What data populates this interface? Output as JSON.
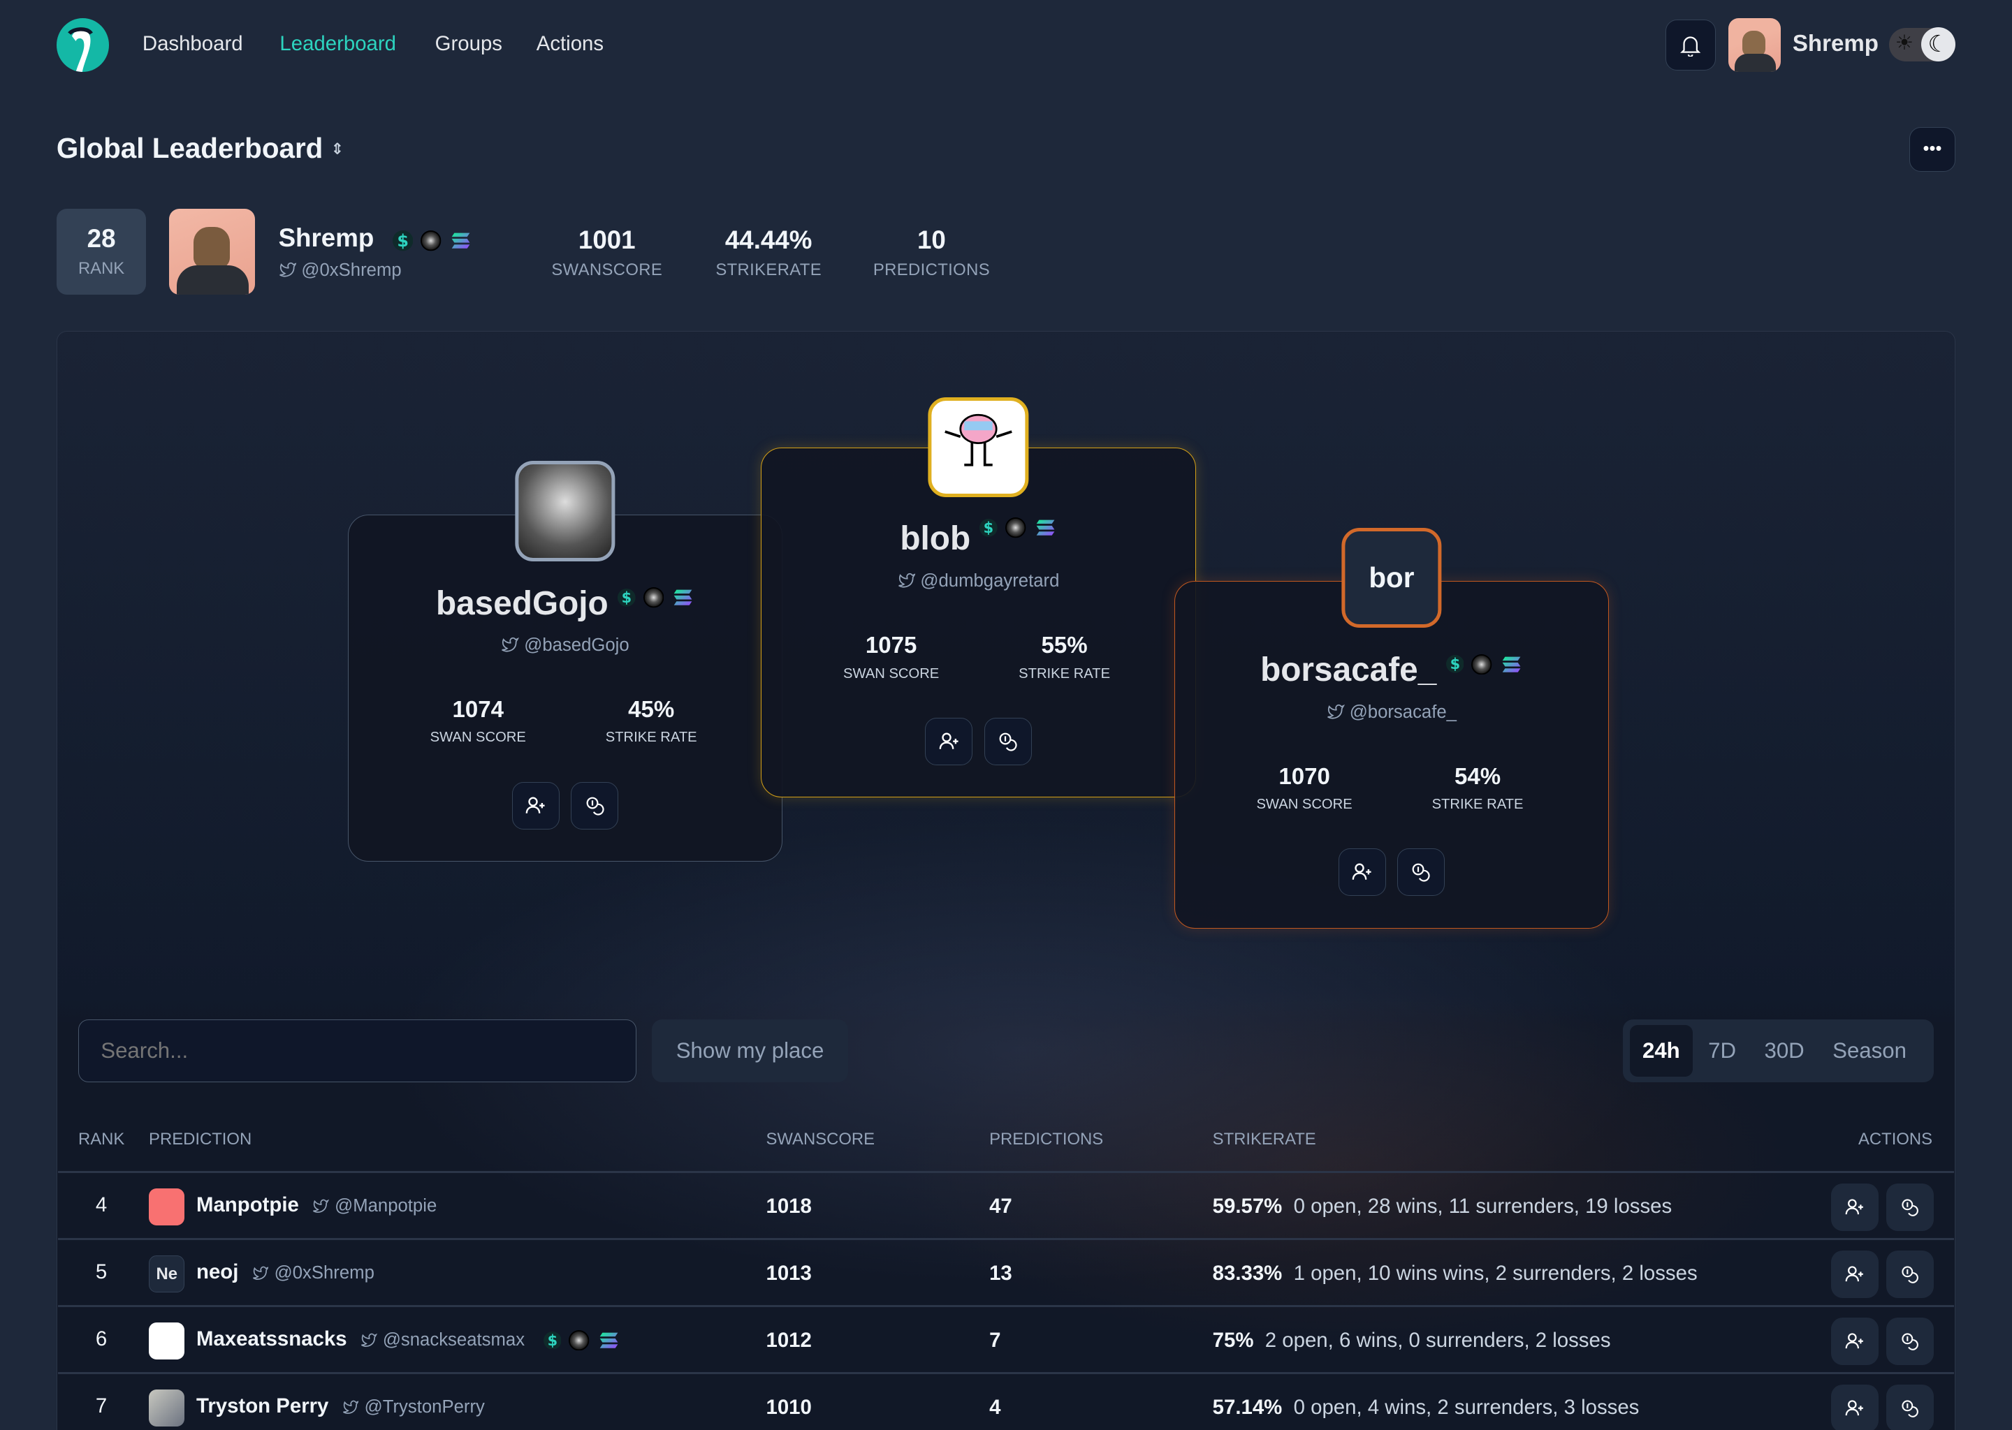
{
  "nav": {
    "items": [
      {
        "label": "Dashboard",
        "active": false
      },
      {
        "label": "Leaderboard",
        "active": true
      },
      {
        "label": "Groups",
        "active": false
      },
      {
        "label": "Actions",
        "active": false
      }
    ],
    "user_name": "Shremp",
    "accent": "#2dd4bf"
  },
  "page": {
    "title": "Global Leaderboard"
  },
  "me": {
    "rank": "28",
    "rank_label": "RANK",
    "name": "Shremp",
    "handle": "@0xShremp",
    "stats": [
      {
        "value": "1001",
        "label": "SWANSCORE"
      },
      {
        "value": "44.44%",
        "label": "STRIKERATE"
      },
      {
        "value": "10",
        "label": "PREDICTIONS"
      }
    ]
  },
  "podium": [
    {
      "place": 2,
      "name": "basedGojo",
      "handle": "@basedGojo",
      "swan_score": "1074",
      "strike_rate": "45%",
      "swan_label": "SWAN SCORE",
      "strike_label": "STRIKE RATE",
      "border": "#475569"
    },
    {
      "place": 1,
      "name": "blob",
      "handle": "@dumbgayretard",
      "swan_score": "1075",
      "strike_rate": "55%",
      "swan_label": "SWAN SCORE",
      "strike_label": "STRIKE RATE",
      "border": "#d4a017"
    },
    {
      "place": 3,
      "name": "borsacafe_",
      "avatar_text": "bor",
      "handle": "@borsacafe_",
      "swan_score": "1070",
      "strike_rate": "54%",
      "swan_label": "SWAN SCORE",
      "strike_label": "STRIKE RATE",
      "border": "#c2581f"
    }
  ],
  "controls": {
    "search_placeholder": "Search...",
    "show_my_place": "Show my place",
    "periods": [
      {
        "label": "24h",
        "active": true
      },
      {
        "label": "7D",
        "active": false
      },
      {
        "label": "30D",
        "active": false
      },
      {
        "label": "Season",
        "active": false
      }
    ]
  },
  "table": {
    "headers": {
      "rank": "RANK",
      "prediction": "PREDICTION",
      "swanscore": "SWANSCORE",
      "predictions": "PREDICTIONS",
      "strikerate": "STRIKERATE",
      "actions": "ACTIONS"
    },
    "rows": [
      {
        "rank": "4",
        "name": "Manpotpie",
        "handle": "@Manpotpie",
        "swanscore": "1018",
        "predictions": "47",
        "strikerate": "59.57%",
        "detail": "0 open, 28 wins, 11 surrenders, 19 losses"
      },
      {
        "rank": "5",
        "name": "neoj",
        "avatar_text": "Ne",
        "handle": "@0xShremp",
        "swanscore": "1013",
        "predictions": "13",
        "strikerate": "83.33%",
        "detail": "1 open, 10 wins wins, 2 surrenders, 2 losses"
      },
      {
        "rank": "6",
        "name": "Maxeatssnacks",
        "handle": "@snackseatsmax",
        "badges": true,
        "swanscore": "1012",
        "predictions": "7",
        "strikerate": "75%",
        "detail": "2 open, 6 wins, 0 surrenders, 2 losses"
      },
      {
        "rank": "7",
        "name": "Tryston Perry",
        "handle": "@TrystonPerry",
        "swanscore": "1010",
        "predictions": "4",
        "strikerate": "57.14%",
        "detail": "0 open, 4 wins, 2 surrenders, 3 losses"
      }
    ]
  }
}
